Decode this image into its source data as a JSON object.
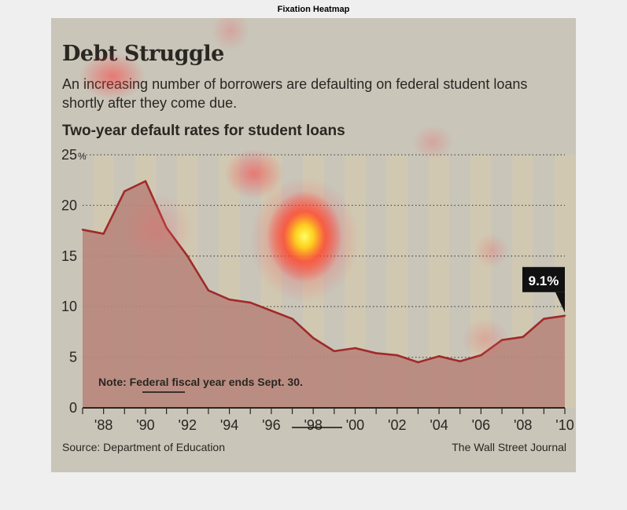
{
  "figure_title": "Fixation Heatmap",
  "headline": "Debt Struggle",
  "subheadline": "An increasing number of borrowers are defaulting on federal student loans shortly after they come due.",
  "source": "Source: Department of Education",
  "credit": "The Wall Street Journal",
  "colors": {
    "panel": "#c9c5b9",
    "area": "#b8867c",
    "line": "#a12a2a",
    "stripe": "#d2c8b0",
    "callout_bg": "#111111"
  },
  "chart_data": {
    "type": "area",
    "title": "Two-year default rates for student loans",
    "x": [
      1987,
      1988,
      1989,
      1990,
      1991,
      1992,
      1993,
      1994,
      1995,
      1996,
      1997,
      1998,
      1999,
      2000,
      2001,
      2002,
      2003,
      2004,
      2005,
      2006,
      2007,
      2008,
      2009,
      2010
    ],
    "values": [
      17.6,
      17.2,
      21.4,
      22.4,
      17.8,
      15.0,
      11.6,
      10.7,
      10.4,
      9.6,
      8.8,
      6.9,
      5.6,
      5.9,
      5.4,
      5.2,
      4.5,
      5.1,
      4.6,
      5.2,
      6.7,
      7.0,
      8.8,
      9.1
    ],
    "xlim": [
      1987,
      2010
    ],
    "ylim": [
      0,
      25
    ],
    "y_ticks": [
      {
        "value": 0,
        "label": "0"
      },
      {
        "value": 5,
        "label": "5"
      },
      {
        "value": 10,
        "label": "10"
      },
      {
        "value": 15,
        "label": "15"
      },
      {
        "value": 20,
        "label": "20"
      },
      {
        "value": 25,
        "label": "25"
      }
    ],
    "y_unit": "%",
    "x_ticks": [
      {
        "value": 1988,
        "label": "'88"
      },
      {
        "value": 1990,
        "label": "'90"
      },
      {
        "value": 1992,
        "label": "'92"
      },
      {
        "value": 1994,
        "label": "'94"
      },
      {
        "value": 1996,
        "label": "'96"
      },
      {
        "value": 1998,
        "label": "'98"
      },
      {
        "value": 2000,
        "label": "'00"
      },
      {
        "value": 2002,
        "label": "'02"
      },
      {
        "value": 2004,
        "label": "'04"
      },
      {
        "value": 2006,
        "label": "'06"
      },
      {
        "value": 2008,
        "label": "'08"
      },
      {
        "value": 2010,
        "label": "'10"
      }
    ],
    "callout": {
      "x": 2010,
      "y": 9.1,
      "label": "9.1%"
    },
    "note": "Note: Federal fiscal year ends Sept. 30.",
    "grid": "dotted horizontal",
    "heatmap_overlay": true
  }
}
